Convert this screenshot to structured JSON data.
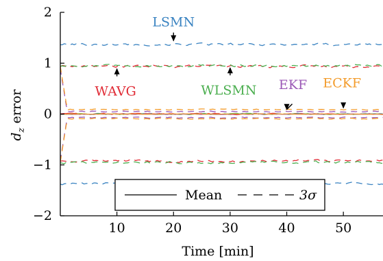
{
  "chart_data": {
    "type": "line",
    "xlabel": "Time [min]",
    "ylabel_main": "d",
    "ylabel_sub": "z",
    "ylabel_rest": " error",
    "xlim": [
      0,
      57
    ],
    "ylim": [
      -2,
      2
    ],
    "xticks": [
      10,
      20,
      30,
      40,
      50
    ],
    "yticks": [
      2,
      1,
      0,
      -1,
      -2
    ],
    "xtick_labels": [
      "10",
      "20",
      "30",
      "40",
      "50"
    ],
    "ytick_labels": [
      "2",
      "1",
      "0",
      "−1",
      "−2"
    ],
    "grid": false,
    "legend": {
      "position": "bottom-center",
      "mean_label": "Mean",
      "sigma_label": "3σ"
    },
    "series": [
      {
        "name": "LSMN",
        "color": "#3a83c1",
        "mean": 0.0,
        "sigma3": 1.37,
        "noise": 0.018
      },
      {
        "name": "WAVG",
        "color": "#e02b35",
        "mean": 0.01,
        "sigma3": 0.93,
        "noise": 0.018
      },
      {
        "name": "WLSMN",
        "color": "#4caf50",
        "mean": 0.0,
        "sigma3": 0.95,
        "noise": 0.018
      },
      {
        "name": "EKF",
        "color": "#9b59b6",
        "mean": -0.01,
        "sigma3": 0.06,
        "noise": 0.008
      },
      {
        "name": "ECKF",
        "color": "#f39c2c",
        "mean": 0.0,
        "sigma3": 0.09,
        "noise": 0.008
      }
    ],
    "annotations": [
      {
        "label": "LSMN",
        "series": "LSMN",
        "x": 20,
        "y": 1.4
      },
      {
        "label": "WAVG",
        "series": "WAVG",
        "x": 10,
        "y": 0.93
      },
      {
        "label": "WLSMN",
        "series": "WLSMN",
        "x": 30,
        "y": 0.95
      },
      {
        "label": "EKF",
        "series": "EKF",
        "x": 40,
        "y": 0.05
      },
      {
        "label": "ECKF",
        "series": "ECKF",
        "x": 50,
        "y": 0.08
      }
    ]
  }
}
